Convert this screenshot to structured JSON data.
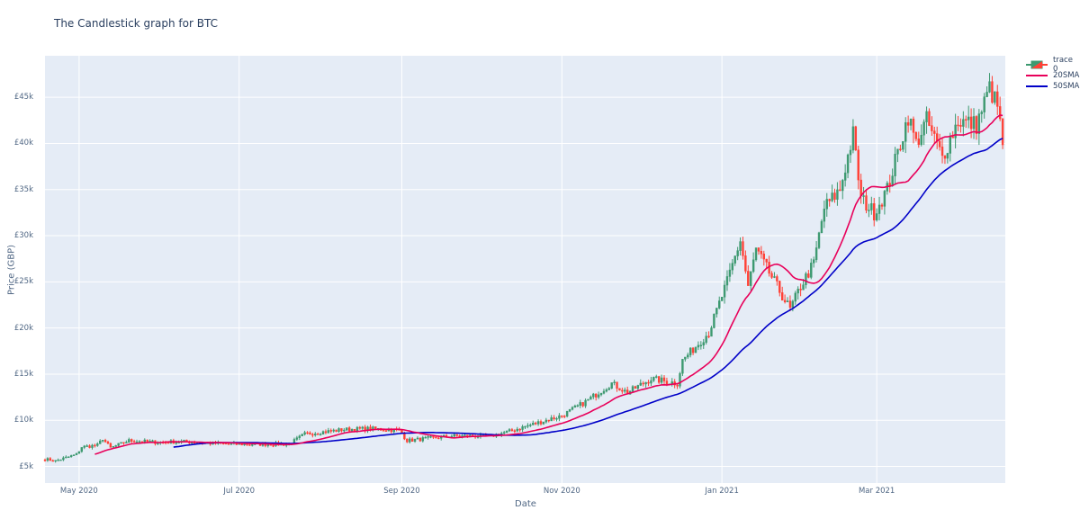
{
  "chart_data": {
    "type": "candlestick",
    "title": "The Candlestick graph for BTC",
    "xlabel": "Date",
    "ylabel": "Price (GBP)",
    "x_range": [
      "2020-04-18",
      "2021-04-19"
    ],
    "ylim": [
      3200,
      49500
    ],
    "x_ticks": [
      {
        "label": "May 2020",
        "date": "2020-05-01"
      },
      {
        "label": "Jul 2020",
        "date": "2020-07-01"
      },
      {
        "label": "Sep 2020",
        "date": "2020-09-01"
      },
      {
        "label": "Nov 2020",
        "date": "2020-11-01"
      },
      {
        "label": "Jan 2021",
        "date": "2021-01-01"
      },
      {
        "label": "Mar 2021",
        "date": "2021-03-01"
      }
    ],
    "y_ticks": [
      {
        "label": "£5k",
        "value": 5000
      },
      {
        "label": "£10k",
        "value": 10000
      },
      {
        "label": "£15k",
        "value": 15000
      },
      {
        "label": "£20k",
        "value": 20000
      },
      {
        "label": "£25k",
        "value": 25000
      },
      {
        "label": "£30k",
        "value": 30000
      },
      {
        "label": "£35k",
        "value": 35000
      },
      {
        "label": "£40k",
        "value": 40000
      },
      {
        "label": "£45k",
        "value": 45000
      }
    ],
    "grid": true,
    "legend_position": "top-right",
    "series": [
      {
        "name": "trace 0",
        "kind": "candlestick",
        "increasing_color": "#3d9970",
        "decreasing_color": "#ff4136"
      },
      {
        "name": "20SMA",
        "kind": "line",
        "color": "#e8005a",
        "window": 20
      },
      {
        "name": "50SMA",
        "kind": "line",
        "color": "#0000c8",
        "window": 50
      }
    ],
    "close_anchors": [
      {
        "date": "2020-04-18",
        "close": 5800
      },
      {
        "date": "2020-04-22",
        "close": 5600
      },
      {
        "date": "2020-04-30",
        "close": 6300
      },
      {
        "date": "2020-05-02",
        "close": 7100
      },
      {
        "date": "2020-05-08",
        "close": 7300
      },
      {
        "date": "2020-05-10",
        "close": 8000
      },
      {
        "date": "2020-05-13",
        "close": 7000
      },
      {
        "date": "2020-05-20",
        "close": 7800
      },
      {
        "date": "2020-06-01",
        "close": 7600
      },
      {
        "date": "2020-06-10",
        "close": 7700
      },
      {
        "date": "2020-06-20",
        "close": 7500
      },
      {
        "date": "2020-07-01",
        "close": 7400
      },
      {
        "date": "2020-07-20",
        "close": 7400
      },
      {
        "date": "2020-07-26",
        "close": 8500
      },
      {
        "date": "2020-08-10",
        "close": 9000
      },
      {
        "date": "2020-08-20",
        "close": 9100
      },
      {
        "date": "2020-08-31",
        "close": 8900
      },
      {
        "date": "2020-09-03",
        "close": 7800
      },
      {
        "date": "2020-09-20",
        "close": 8300
      },
      {
        "date": "2020-10-05",
        "close": 8300
      },
      {
        "date": "2020-10-12",
        "close": 8800
      },
      {
        "date": "2020-10-20",
        "close": 9500
      },
      {
        "date": "2020-11-01",
        "close": 10500
      },
      {
        "date": "2020-11-10",
        "close": 12000
      },
      {
        "date": "2020-11-20",
        "close": 14000
      },
      {
        "date": "2020-11-26",
        "close": 13000
      },
      {
        "date": "2020-12-05",
        "close": 14500
      },
      {
        "date": "2020-12-15",
        "close": 14000
      },
      {
        "date": "2020-12-17",
        "close": 16500
      },
      {
        "date": "2020-12-27",
        "close": 19500
      },
      {
        "date": "2021-01-03",
        "close": 25000
      },
      {
        "date": "2021-01-08",
        "close": 29500
      },
      {
        "date": "2021-01-11",
        "close": 24500
      },
      {
        "date": "2021-01-14",
        "close": 28500
      },
      {
        "date": "2021-01-20",
        "close": 25500
      },
      {
        "date": "2021-01-27",
        "close": 22000
      },
      {
        "date": "2021-01-31",
        "close": 24500
      },
      {
        "date": "2021-02-05",
        "close": 27000
      },
      {
        "date": "2021-02-09",
        "close": 33000
      },
      {
        "date": "2021-02-15",
        "close": 35000
      },
      {
        "date": "2021-02-20",
        "close": 41000
      },
      {
        "date": "2021-02-23",
        "close": 34000
      },
      {
        "date": "2021-02-28",
        "close": 32500
      },
      {
        "date": "2021-03-05",
        "close": 35000
      },
      {
        "date": "2021-03-13",
        "close": 43000
      },
      {
        "date": "2021-03-16",
        "close": 40000
      },
      {
        "date": "2021-03-20",
        "close": 42500
      },
      {
        "date": "2021-03-26",
        "close": 38500
      },
      {
        "date": "2021-04-01",
        "close": 42500
      },
      {
        "date": "2021-04-08",
        "close": 42000
      },
      {
        "date": "2021-04-13",
        "close": 46000
      },
      {
        "date": "2021-04-16",
        "close": 44000
      },
      {
        "date": "2021-04-18",
        "close": 40000
      }
    ],
    "sma20_last": 43000,
    "sma50_last": 41000
  },
  "legend": {
    "items": [
      {
        "label": "trace 0"
      },
      {
        "label": "20SMA"
      },
      {
        "label": "50SMA"
      }
    ]
  },
  "colors": {
    "plot_bg": "#e5ecf6",
    "grid": "#ffffff",
    "increasing": "#3d9970",
    "decreasing": "#ff4136",
    "sma20": "#e8005a",
    "sma50": "#0000c8"
  }
}
